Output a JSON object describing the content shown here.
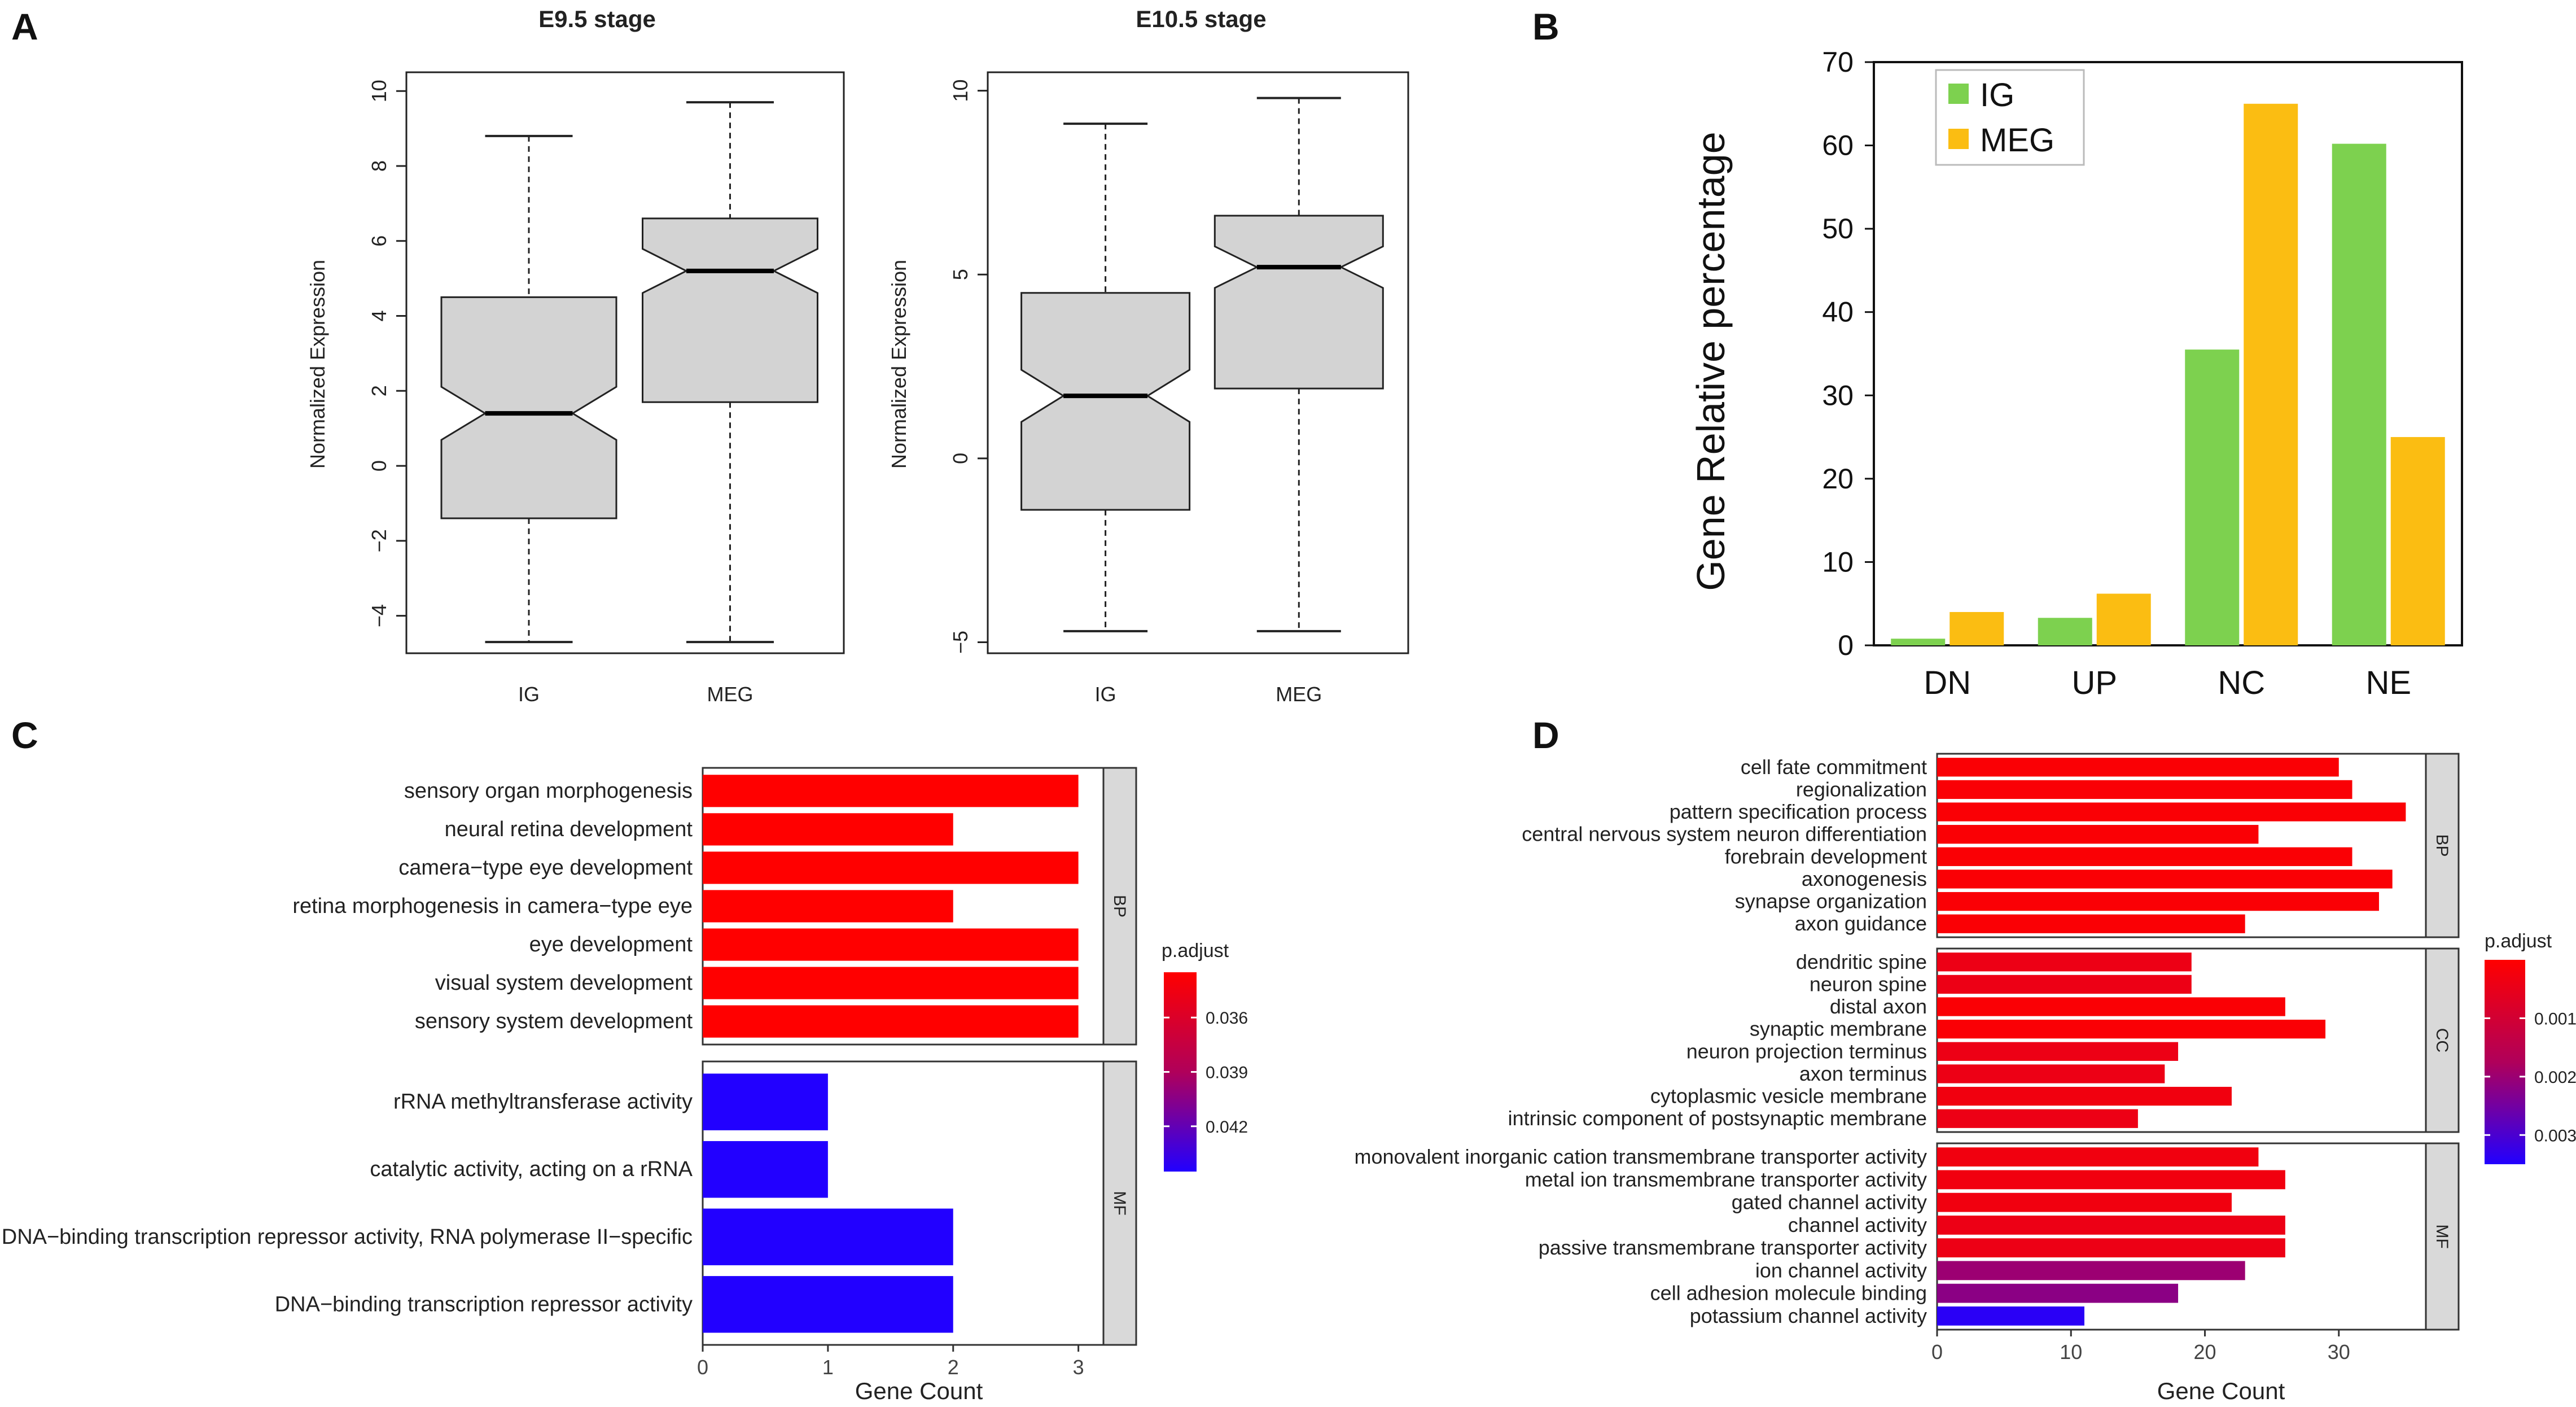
{
  "panel_labels": {
    "a": "A",
    "b": "B",
    "c": "C",
    "d": "D"
  },
  "colors": {
    "box_fill": "#d3d3d3",
    "ig": "#7dd14f",
    "meg": "#fbbd12",
    "padj_low": "#ff0000",
    "padj_high": "#0000ff",
    "strip": "#d9d9d9",
    "panel_bg": "#ffffff"
  },
  "chart_data": [
    {
      "id": "A1",
      "type": "boxplot",
      "title": "E9.5 stage",
      "ylabel": "Normalized Expression",
      "ylim": [
        -5,
        10.5
      ],
      "yticks": [
        -4,
        -2,
        0,
        2,
        4,
        6,
        8,
        10
      ],
      "ytick_labels": [
        "−4",
        "−2",
        "0",
        "2",
        "4",
        "6",
        "8",
        "10"
      ],
      "categories": [
        "IG",
        "MEG"
      ],
      "boxes": [
        {
          "name": "IG",
          "min": -4.7,
          "q1": -1.4,
          "median": 1.4,
          "q3": 4.5,
          "max": 8.8
        },
        {
          "name": "MEG",
          "min": -4.7,
          "q1": 1.7,
          "median": 5.2,
          "q3": 6.6,
          "max": 9.7
        }
      ]
    },
    {
      "id": "A2",
      "type": "boxplot",
      "title": "E10.5 stage",
      "ylabel": "Normalized Expression",
      "ylim": [
        -5.3,
        10.5
      ],
      "yticks": [
        -5,
        0,
        5,
        10
      ],
      "ytick_labels": [
        "−5",
        "0",
        "5",
        "10"
      ],
      "categories": [
        "IG",
        "MEG"
      ],
      "boxes": [
        {
          "name": "IG",
          "min": -4.7,
          "q1": -1.4,
          "median": 1.7,
          "q3": 4.5,
          "max": 9.1
        },
        {
          "name": "MEG",
          "min": -4.7,
          "q1": 1.9,
          "median": 5.2,
          "q3": 6.6,
          "max": 9.8
        }
      ]
    },
    {
      "id": "B",
      "type": "bar",
      "ylabel": "Gene Relative percentage",
      "ylim": [
        0,
        70
      ],
      "yticks": [
        0,
        10,
        20,
        30,
        40,
        50,
        60,
        70
      ],
      "categories": [
        "DN",
        "UP",
        "NC",
        "NE"
      ],
      "series": [
        {
          "name": "IG",
          "color": "#7dd14f",
          "values": [
            0.8,
            3.3,
            35.5,
            60.2
          ]
        },
        {
          "name": "MEG",
          "color": "#fbbd12",
          "values": [
            4.0,
            6.2,
            65.0,
            25.0
          ]
        }
      ],
      "legend": "top-left"
    },
    {
      "id": "C",
      "type": "bar",
      "orientation": "horizontal",
      "xlabel": "Gene Count",
      "xlim": [
        0,
        3.2
      ],
      "xticks": [
        0,
        1,
        2,
        3
      ],
      "facets": [
        {
          "name": "BP",
          "terms": [
            {
              "label": "sensory organ morphogenesis",
              "count": 3,
              "padj": 0.0335
            },
            {
              "label": "neural retina development",
              "count": 2,
              "padj": 0.0335
            },
            {
              "label": "camera−type eye development",
              "count": 3,
              "padj": 0.0335
            },
            {
              "label": "retina morphogenesis in camera−type eye",
              "count": 2,
              "padj": 0.0335
            },
            {
              "label": "eye development",
              "count": 3,
              "padj": 0.0335
            },
            {
              "label": "visual system development",
              "count": 3,
              "padj": 0.0335
            },
            {
              "label": "sensory system development",
              "count": 3,
              "padj": 0.0335
            }
          ]
        },
        {
          "name": "MF",
          "terms": [
            {
              "label": "rRNA methyltransferase activity",
              "count": 1,
              "padj": 0.0445
            },
            {
              "label": "catalytic activity, acting on a rRNA",
              "count": 1,
              "padj": 0.0445
            },
            {
              "label": "DNA−binding transcription repressor activity, RNA polymerase II−specific",
              "count": 2,
              "padj": 0.0445
            },
            {
              "label": "DNA−binding transcription repressor activity",
              "count": 2,
              "padj": 0.0445
            }
          ]
        }
      ],
      "legend": {
        "title": "p.adjust",
        "range": [
          0.0335,
          0.0445
        ],
        "ticks": [
          0.036,
          0.039,
          0.042
        ],
        "tick_labels": [
          "0.036",
          "0.039",
          "0.042"
        ]
      }
    },
    {
      "id": "D",
      "type": "bar",
      "orientation": "horizontal",
      "xlabel": "Gene Count",
      "xlim": [
        0,
        36.5
      ],
      "xticks": [
        0,
        10,
        20,
        30
      ],
      "facets": [
        {
          "name": "BP",
          "terms": [
            {
              "label": "cell fate commitment",
              "count": 30,
              "padj": 0.0001
            },
            {
              "label": "regionalization",
              "count": 31,
              "padj": 0.0001
            },
            {
              "label": "pattern specification process",
              "count": 35,
              "padj": 0.0001
            },
            {
              "label": "central nervous system neuron differentiation",
              "count": 24,
              "padj": 0.0001
            },
            {
              "label": "forebrain development",
              "count": 31,
              "padj": 0.0001
            },
            {
              "label": "axonogenesis",
              "count": 34,
              "padj": 0.0001
            },
            {
              "label": "synapse organization",
              "count": 33,
              "padj": 0.0001
            },
            {
              "label": "axon guidance",
              "count": 23,
              "padj": 0.0001
            }
          ]
        },
        {
          "name": "CC",
          "terms": [
            {
              "label": "dendritic spine",
              "count": 19,
              "padj": 0.0004
            },
            {
              "label": "neuron spine",
              "count": 19,
              "padj": 0.0004
            },
            {
              "label": "distal axon",
              "count": 26,
              "padj": 0.0001
            },
            {
              "label": "synaptic membrane",
              "count": 29,
              "padj": 0.0001
            },
            {
              "label": "neuron projection terminus",
              "count": 18,
              "padj": 0.0004
            },
            {
              "label": "axon terminus",
              "count": 17,
              "padj": 0.0004
            },
            {
              "label": "cytoplasmic vesicle membrane",
              "count": 22,
              "padj": 0.0003
            },
            {
              "label": "intrinsic component of postsynaptic membrane",
              "count": 15,
              "padj": 0.0004
            }
          ]
        },
        {
          "name": "MF",
          "terms": [
            {
              "label": "monovalent inorganic cation transmembrane transporter activity",
              "count": 24,
              "padj": 0.0003
            },
            {
              "label": "metal ion transmembrane transporter activity",
              "count": 26,
              "padj": 0.0003
            },
            {
              "label": "gated channel activity",
              "count": 22,
              "padj": 0.0003
            },
            {
              "label": "channel activity",
              "count": 26,
              "padj": 0.0004
            },
            {
              "label": "passive transmembrane transporter activity",
              "count": 26,
              "padj": 0.0004
            },
            {
              "label": "ion channel activity",
              "count": 23,
              "padj": 0.002
            },
            {
              "label": "cell adhesion molecule binding",
              "count": 18,
              "padj": 0.0022
            },
            {
              "label": "potassium channel activity",
              "count": 11,
              "padj": 0.0034
            }
          ]
        }
      ],
      "legend": {
        "title": "p.adjust",
        "range": [
          0.0,
          0.0035
        ],
        "ticks": [
          0.001,
          0.002,
          0.003
        ],
        "tick_labels": [
          "0.001",
          "0.002",
          "0.003"
        ]
      }
    }
  ]
}
